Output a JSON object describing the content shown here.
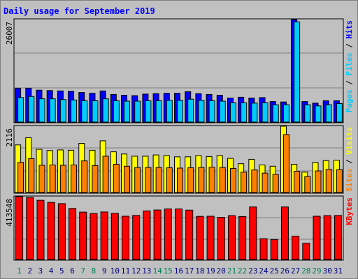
{
  "chart_data": [
    {
      "type": "bar",
      "title": "Daily usage for September 2019",
      "ylabel_parts": [
        "Pages",
        "Files",
        "Hits"
      ],
      "ymax_label": "26007",
      "ylim": [
        0,
        26007
      ],
      "categories": [
        "1",
        "2",
        "3",
        "4",
        "5",
        "6",
        "7",
        "8",
        "9",
        "10",
        "11",
        "12",
        "13",
        "14",
        "15",
        "16",
        "17",
        "18",
        "19",
        "20",
        "21",
        "22",
        "23",
        "24",
        "25",
        "26",
        "27",
        "28",
        "29",
        "30",
        "31"
      ],
      "series": [
        {
          "name": "Hits",
          "color": "#0000ff",
          "values": [
            8600,
            8600,
            8100,
            8000,
            7900,
            7800,
            7500,
            7300,
            7900,
            7000,
            6800,
            6700,
            7100,
            7200,
            7300,
            7300,
            7700,
            7200,
            7000,
            6800,
            6100,
            6300,
            6100,
            6200,
            5200,
            5100,
            26007,
            5200,
            4800,
            5400,
            5400
          ]
        },
        {
          "name": "Files",
          "color": "#00ccff",
          "values": [
            6200,
            6500,
            5900,
            5900,
            5700,
            5600,
            5400,
            5400,
            5900,
            5400,
            5300,
            5300,
            5400,
            5400,
            5500,
            5500,
            5800,
            5500,
            5400,
            5300,
            4900,
            4900,
            4800,
            4900,
            4400,
            4400,
            25400,
            4400,
            4100,
            4400,
            4700
          ]
        }
      ],
      "colors": {
        "hits": "#0000ff",
        "files": "#00ccff",
        "pages": "#00ccff",
        "divider": "#000000"
      }
    },
    {
      "type": "bar",
      "ylabel_parts": [
        "Sites",
        "Visits"
      ],
      "ymax_label": "2116",
      "ylim": [
        0,
        2116
      ],
      "categories": [
        "1",
        "2",
        "3",
        "4",
        "5",
        "6",
        "7",
        "8",
        "9",
        "10",
        "11",
        "12",
        "13",
        "14",
        "15",
        "16",
        "17",
        "18",
        "19",
        "20",
        "21",
        "22",
        "23",
        "24",
        "25",
        "26",
        "27",
        "28",
        "29",
        "30",
        "31"
      ],
      "series": [
        {
          "name": "Visits",
          "color": "#ffff00",
          "values": [
            1520,
            1750,
            1380,
            1340,
            1360,
            1350,
            1570,
            1350,
            1650,
            1300,
            1230,
            1160,
            1160,
            1200,
            1180,
            1140,
            1140,
            1180,
            1150,
            1180,
            1090,
            920,
            1060,
            880,
            840,
            2116,
            900,
            650,
            960,
            1020,
            1030
          ]
        },
        {
          "name": "Sites",
          "color": "#ff8000",
          "values": [
            960,
            1080,
            870,
            880,
            870,
            880,
            1010,
            860,
            1160,
            900,
            840,
            800,
            800,
            800,
            790,
            780,
            790,
            800,
            810,
            800,
            770,
            650,
            720,
            620,
            580,
            1850,
            680,
            510,
            690,
            740,
            730
          ]
        }
      ],
      "colors": {
        "visits": "#ffff00",
        "sites": "#ff8000",
        "divider": "#000000"
      }
    },
    {
      "type": "bar",
      "ylabel_parts": [
        "KBytes"
      ],
      "ymax_label": "413548",
      "ylim": [
        0,
        413548
      ],
      "categories": [
        "1",
        "2",
        "3",
        "4",
        "5",
        "6",
        "7",
        "8",
        "9",
        "10",
        "11",
        "12",
        "13",
        "14",
        "15",
        "16",
        "17",
        "18",
        "19",
        "20",
        "21",
        "22",
        "23",
        "24",
        "25",
        "26",
        "27",
        "28",
        "29",
        "30",
        "31"
      ],
      "series": [
        {
          "name": "KBytes",
          "color": "#ff0000",
          "values": [
            413548,
            408000,
            390000,
            376000,
            368000,
            336000,
            312000,
            303000,
            313000,
            304000,
            285000,
            290000,
            320000,
            326000,
            333000,
            333000,
            325000,
            284000,
            285000,
            278000,
            289000,
            283000,
            346000,
            137000,
            132000,
            346000,
            154000,
            107000,
            285000,
            289000,
            290000
          ]
        }
      ],
      "colors": {
        "kbytes": "#ff0000"
      }
    }
  ],
  "x_labels": [
    "1",
    "2",
    "3",
    "4",
    "5",
    "6",
    "7",
    "8",
    "9",
    "10",
    "11",
    "12",
    "13",
    "14",
    "15",
    "16",
    "17",
    "18",
    "19",
    "20",
    "21",
    "22",
    "23",
    "24",
    "25",
    "26",
    "27",
    "28",
    "29",
    "30",
    "31"
  ],
  "weekend_days": [
    1,
    7,
    8,
    14,
    15,
    21,
    22,
    28,
    29
  ],
  "colors": {
    "panel_bg": "#c0c0c0",
    "gridline": "#808080",
    "title": "#0000ff",
    "axis_text": "#000000",
    "weekday_label": "#000080",
    "weekend_label": "#00805c",
    "label_separator": "#000000"
  }
}
